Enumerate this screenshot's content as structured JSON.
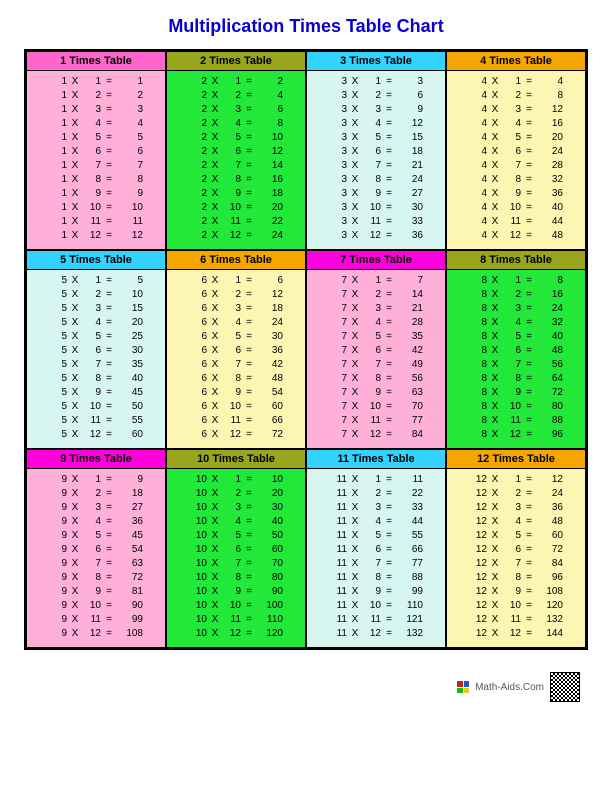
{
  "title": "Multiplication Times Table Chart",
  "footer_text": "Math-Aids.Com",
  "footer_logo_colors": [
    "#d41a1a",
    "#1a58d4",
    "#1ab81a",
    "#e6c81a"
  ],
  "multiply_symbol": "X",
  "equals_symbol": "=",
  "rows_per_table": 12,
  "header_colors": {
    "pink": "#ff66cc",
    "olive": "#9aa51e",
    "cyan": "#33d2ff",
    "orange": "#f4a500",
    "magenta": "#ff00dd"
  },
  "body_colors": {
    "pink": "#ffb0d9",
    "green": "#22e83a",
    "lightcyan": "#d7f6f0",
    "yellow": "#fdf6b2"
  },
  "tables": [
    {
      "n": 1,
      "label": "1 Times Table",
      "header_color": "#ff66cc",
      "body_color": "#ffb0d9"
    },
    {
      "n": 2,
      "label": "2 Times Table",
      "header_color": "#9aa51e",
      "body_color": "#22e83a"
    },
    {
      "n": 3,
      "label": "3 Times Table",
      "header_color": "#33d2ff",
      "body_color": "#d7f6f0"
    },
    {
      "n": 4,
      "label": "4 Times Table",
      "header_color": "#f4a500",
      "body_color": "#fdf6b2"
    },
    {
      "n": 5,
      "label": "5 Times Table",
      "header_color": "#33d2ff",
      "body_color": "#d7f6f0"
    },
    {
      "n": 6,
      "label": "6 Times Table",
      "header_color": "#f4a500",
      "body_color": "#fdf6b2"
    },
    {
      "n": 7,
      "label": "7 Times Table",
      "header_color": "#ff00dd",
      "body_color": "#ffb0d9"
    },
    {
      "n": 8,
      "label": "8 Times Table",
      "header_color": "#9aa51e",
      "body_color": "#22e83a"
    },
    {
      "n": 9,
      "label": "9 Times Table",
      "header_color": "#ff00dd",
      "body_color": "#ffb0d9"
    },
    {
      "n": 10,
      "label": "10 Times Table",
      "header_color": "#9aa51e",
      "body_color": "#22e83a"
    },
    {
      "n": 11,
      "label": "11 Times Table",
      "header_color": "#33d2ff",
      "body_color": "#d7f6f0"
    },
    {
      "n": 12,
      "label": "12 Times Table",
      "header_color": "#f4a500",
      "body_color": "#fdf6b2"
    }
  ]
}
